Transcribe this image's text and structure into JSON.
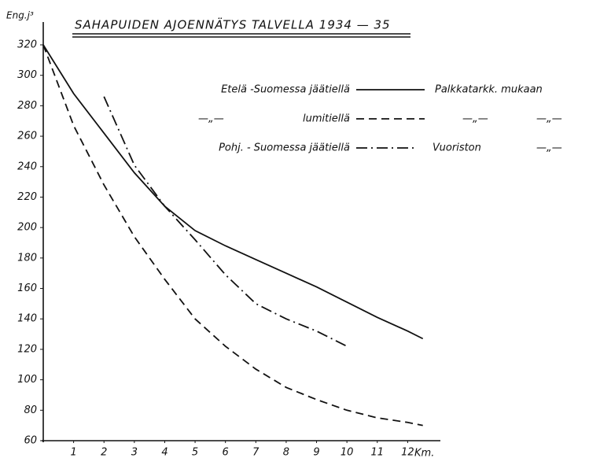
{
  "chart_data": {
    "type": "line",
    "title": "SAHAPUIDEN AJOENNÄTYS TALVELLA 1934 — 35",
    "y_label": "Eng.j³",
    "x_label": "Km.",
    "x": [
      0,
      1,
      2,
      3,
      4,
      5,
      6,
      7,
      8,
      9,
      10,
      11,
      12,
      12.5
    ],
    "series": [
      {
        "name": "Etelä -Suomessa jäätiellä",
        "color": "#111111",
        "dash": "solid",
        "values": [
          320,
          288,
          262,
          236,
          214,
          198,
          188,
          179,
          170,
          161,
          151,
          141,
          132,
          127
        ]
      },
      {
        "name": "lumitiellä",
        "color": "#111111",
        "dash": "dashed",
        "values": [
          320,
          267,
          228,
          194,
          166,
          140,
          122,
          107,
          95,
          87,
          80,
          75,
          72,
          70
        ]
      },
      {
        "name": "Pohj. - Suomessa jäätiellä",
        "color": "#111111",
        "dash": "dashdot",
        "values": [
          null,
          null,
          286,
          241,
          214,
          192,
          169,
          150,
          140,
          132,
          122,
          null,
          null,
          null
        ]
      }
    ],
    "annotations": [
      "Palkkatarkk. mukaan",
      "—„—",
      "—„—",
      "—„—",
      "Vuoriston",
      "—„—"
    ],
    "xlim": [
      0,
      13
    ],
    "xticks": [
      1,
      2,
      3,
      4,
      5,
      6,
      7,
      8,
      9,
      10,
      11,
      12
    ],
    "ylim": [
      60,
      320
    ],
    "yticks": [
      60,
      80,
      100,
      120,
      140,
      160,
      180,
      200,
      220,
      240,
      260,
      280,
      300,
      320
    ]
  }
}
